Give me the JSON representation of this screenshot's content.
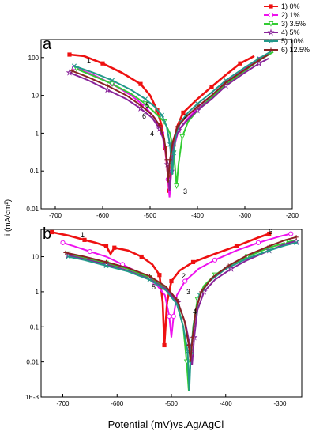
{
  "figure": {
    "ylabel": "i (mA/cm²)",
    "xlabel": "Potential (mV)vs.Ag/AgCl"
  },
  "legend": [
    {
      "label": "1) 0%",
      "color": "#ee1111",
      "marker": "square"
    },
    {
      "label": "2) 1%",
      "color": "#ee11ee",
      "marker": "circle"
    },
    {
      "label": "3) 3.5%",
      "color": "#33cc33",
      "marker": "triangle-down"
    },
    {
      "label": "4) 5%",
      "color": "#882299",
      "marker": "star"
    },
    {
      "label": "5) 10%",
      "color": "#22998a",
      "marker": "x"
    },
    {
      "label": "6) 12.5%",
      "color": "#882222",
      "marker": "plus"
    }
  ],
  "chart_data": [
    {
      "panel": "a",
      "type": "line",
      "xlabel": "",
      "ylabel": "i (mA/cm²)",
      "x_ticks": [
        -700,
        -600,
        -500,
        -400,
        -300,
        -200
      ],
      "y_ticks": [
        "0.01",
        "0.1",
        "1",
        "10",
        "100"
      ],
      "y_scale": "log",
      "xlim": [
        -730,
        -200
      ],
      "ylim": [
        0.01,
        300
      ],
      "curve_labels": [
        "1",
        "2",
        "3",
        "4",
        "5",
        "6"
      ],
      "series": [
        {
          "name": "1) 0%",
          "corrosion_potential": -460,
          "points": [
            [
              -670,
              120
            ],
            [
              -640,
              110
            ],
            [
              -600,
              70
            ],
            [
              -560,
              40
            ],
            [
              -520,
              20
            ],
            [
              -500,
              10
            ],
            [
              -485,
              4
            ],
            [
              -475,
              1.5
            ],
            [
              -468,
              0.4
            ],
            [
              -463,
              0.1
            ],
            [
              -460,
              0.03
            ],
            [
              -456,
              0.1
            ],
            [
              -450,
              0.5
            ],
            [
              -443,
              1.5
            ],
            [
              -430,
              3.5
            ],
            [
              -400,
              8
            ],
            [
              -370,
              17
            ],
            [
              -340,
              35
            ],
            [
              -310,
              70
            ],
            [
              -280,
              110
            ]
          ]
        },
        {
          "name": "2) 1%",
          "corrosion_potential": -460,
          "points": [
            [
              -660,
              55
            ],
            [
              -620,
              35
            ],
            [
              -580,
              20
            ],
            [
              -540,
              10
            ],
            [
              -510,
              5
            ],
            [
              -490,
              2.5
            ],
            [
              -475,
              1
            ],
            [
              -467,
              0.3
            ],
            [
              -462,
              0.06
            ],
            [
              -459,
              0.02
            ],
            [
              -455,
              0.1
            ],
            [
              -450,
              0.4
            ],
            [
              -440,
              1.2
            ],
            [
              -420,
              2.5
            ],
            [
              -400,
              4.5
            ],
            [
              -370,
              10
            ],
            [
              -340,
              22
            ],
            [
              -300,
              50
            ],
            [
              -270,
              90
            ],
            [
              -250,
              130
            ]
          ]
        },
        {
          "name": "3) 3.5%",
          "corrosion_potential": -445,
          "points": [
            [
              -655,
              50
            ],
            [
              -620,
              33
            ],
            [
              -580,
              20
            ],
            [
              -540,
              11
            ],
            [
              -510,
              6
            ],
            [
              -490,
              3.5
            ],
            [
              -470,
              2
            ],
            [
              -458,
              1
            ],
            [
              -450,
              0.3
            ],
            [
              -446,
              0.08
            ],
            [
              -444,
              0.04
            ],
            [
              -440,
              0.15
            ],
            [
              -432,
              0.8
            ],
            [
              -420,
              2
            ],
            [
              -400,
              4
            ],
            [
              -370,
              9
            ],
            [
              -340,
              20
            ],
            [
              -300,
              45
            ],
            [
              -270,
              85
            ],
            [
              -240,
              140
            ]
          ]
        },
        {
          "name": "4) 5%",
          "corrosion_potential": -458,
          "points": [
            [
              -670,
              40
            ],
            [
              -630,
              25
            ],
            [
              -590,
              14
            ],
            [
              -550,
              8
            ],
            [
              -520,
              4.5
            ],
            [
              -495,
              2.5
            ],
            [
              -480,
              1.3
            ],
            [
              -470,
              0.6
            ],
            [
              -463,
              0.15
            ],
            [
              -459,
              0.03
            ],
            [
              -455,
              0.1
            ],
            [
              -450,
              0.5
            ],
            [
              -440,
              1.2
            ],
            [
              -420,
              2.3
            ],
            [
              -400,
              4
            ],
            [
              -370,
              8
            ],
            [
              -340,
              18
            ],
            [
              -300,
              40
            ],
            [
              -270,
              70
            ],
            [
              -250,
              95
            ]
          ]
        },
        {
          "name": "5) 10%",
          "corrosion_potential": -452,
          "points": [
            [
              -660,
              60
            ],
            [
              -620,
              40
            ],
            [
              -580,
              25
            ],
            [
              -540,
              14
            ],
            [
              -510,
              8
            ],
            [
              -490,
              5
            ],
            [
              -475,
              3
            ],
            [
              -465,
              1.5
            ],
            [
              -458,
              0.5
            ],
            [
              -453,
              0.08
            ],
            [
              -450,
              0.3
            ],
            [
              -445,
              1
            ],
            [
              -435,
              2
            ],
            [
              -420,
              3.5
            ],
            [
              -400,
              6
            ],
            [
              -370,
              12
            ],
            [
              -340,
              25
            ],
            [
              -300,
              55
            ],
            [
              -270,
              95
            ],
            [
              -245,
              145
            ]
          ]
        },
        {
          "name": "6) 12.5%",
          "corrosion_potential": -462,
          "points": [
            [
              -665,
              45
            ],
            [
              -630,
              30
            ],
            [
              -590,
              18
            ],
            [
              -550,
              10
            ],
            [
              -520,
              5.5
            ],
            [
              -495,
              3
            ],
            [
              -480,
              1.6
            ],
            [
              -470,
              0.7
            ],
            [
              -465,
              0.2
            ],
            [
              -462,
              0.05
            ],
            [
              -458,
              0.2
            ],
            [
              -452,
              0.6
            ],
            [
              -442,
              1.5
            ],
            [
              -420,
              3
            ],
            [
              -400,
              5
            ],
            [
              -370,
              10
            ],
            [
              -340,
              22
            ],
            [
              -300,
              48
            ],
            [
              -270,
              85
            ],
            [
              -250,
              120
            ]
          ]
        }
      ]
    },
    {
      "panel": "b",
      "type": "line",
      "xlabel": "Potential (mV)vs.Ag/AgCl",
      "ylabel": "",
      "x_ticks": [
        -700,
        -600,
        -500,
        -400,
        -300
      ],
      "y_ticks": [
        "1E-3",
        "0.01",
        "0.1",
        "1",
        "10"
      ],
      "y_scale": "log",
      "xlim": [
        -740,
        -260
      ],
      "ylim": [
        0.001,
        60
      ],
      "curve_labels": [
        "1",
        "2",
        "3",
        "4",
        "5",
        "6"
      ],
      "series": [
        {
          "name": "1) 0%",
          "corrosion_potential": -515,
          "points": [
            [
              -720,
              50
            ],
            [
              -690,
              40
            ],
            [
              -660,
              30
            ],
            [
              -640,
              25
            ],
            [
              -620,
              20
            ],
            [
              -612,
              12
            ],
            [
              -605,
              18
            ],
            [
              -580,
              15
            ],
            [
              -555,
              10
            ],
            [
              -535,
              6
            ],
            [
              -522,
              3
            ],
            [
              -516,
              0.5
            ],
            [
              -513,
              0.03
            ],
            [
              -508,
              0.5
            ],
            [
              -500,
              2
            ],
            [
              -485,
              4
            ],
            [
              -460,
              7
            ],
            [
              -420,
              12
            ],
            [
              -380,
              20
            ],
            [
              -340,
              35
            ],
            [
              -320,
              45
            ]
          ]
        },
        {
          "name": "2) 1%",
          "corrosion_potential": -500,
          "points": [
            [
              -700,
              25
            ],
            [
              -680,
              20
            ],
            [
              -650,
              14
            ],
            [
              -620,
              10
            ],
            [
              -590,
              6
            ],
            [
              -560,
              3.5
            ],
            [
              -530,
              1.8
            ],
            [
              -512,
              0.8
            ],
            [
              -504,
              0.2
            ],
            [
              -500,
              0.05
            ],
            [
              -496,
              0.2
            ],
            [
              -490,
              0.8
            ],
            [
              -475,
              2
            ],
            [
              -450,
              4.5
            ],
            [
              -420,
              8
            ],
            [
              -380,
              15
            ],
            [
              -340,
              25
            ],
            [
              -300,
              38
            ],
            [
              -280,
              45
            ]
          ]
        },
        {
          "name": "3) 3.5%",
          "corrosion_potential": -470,
          "points": [
            [
              -690,
              12
            ],
            [
              -660,
              9
            ],
            [
              -620,
              6.5
            ],
            [
              -580,
              4.5
            ],
            [
              -540,
              2.5
            ],
            [
              -510,
              1.3
            ],
            [
              -490,
              0.5
            ],
            [
              -478,
              0.1
            ],
            [
              -472,
              0.01
            ],
            [
              -468,
              0.0015
            ],
            [
              -465,
              0.01
            ],
            [
              -460,
              0.1
            ],
            [
              -452,
              0.6
            ],
            [
              -440,
              1.5
            ],
            [
              -420,
              3
            ],
            [
              -390,
              6
            ],
            [
              -360,
              10
            ],
            [
              -320,
              18
            ],
            [
              -290,
              25
            ],
            [
              -270,
              30
            ]
          ]
        },
        {
          "name": "4) 5%",
          "corrosion_potential": -462,
          "points": [
            [
              -690,
              11
            ],
            [
              -660,
              8.5
            ],
            [
              -620,
              6
            ],
            [
              -580,
              4
            ],
            [
              -540,
              2.3
            ],
            [
              -510,
              1.2
            ],
            [
              -488,
              0.5
            ],
            [
              -474,
              0.12
            ],
            [
              -466,
              0.03
            ],
            [
              -462,
              0.008
            ],
            [
              -458,
              0.05
            ],
            [
              -452,
              0.3
            ],
            [
              -440,
              1
            ],
            [
              -420,
              2.2
            ],
            [
              -390,
              4.5
            ],
            [
              -360,
              8
            ],
            [
              -320,
              15
            ],
            [
              -290,
              23
            ],
            [
              -270,
              28
            ]
          ]
        },
        {
          "name": "5) 10%",
          "corrosion_potential": -468,
          "points": [
            [
              -690,
              10
            ],
            [
              -660,
              8
            ],
            [
              -620,
              5.5
            ],
            [
              -580,
              3.8
            ],
            [
              -540,
              2.2
            ],
            [
              -510,
              1.1
            ],
            [
              -490,
              0.45
            ],
            [
              -478,
              0.1
            ],
            [
              -470,
              0.02
            ],
            [
              -467,
              0.0015
            ],
            [
              -464,
              0.02
            ],
            [
              -458,
              0.15
            ],
            [
              -448,
              0.8
            ],
            [
              -430,
              2
            ],
            [
              -400,
              4.5
            ],
            [
              -360,
              9
            ],
            [
              -320,
              15
            ],
            [
              -290,
              21
            ],
            [
              -270,
              25
            ]
          ]
        },
        {
          "name": "6) 12.5%",
          "corrosion_potential": -465,
          "points": [
            [
              -695,
              13
            ],
            [
              -660,
              10
            ],
            [
              -620,
              7
            ],
            [
              -580,
              4.8
            ],
            [
              -540,
              2.8
            ],
            [
              -510,
              1.4
            ],
            [
              -490,
              0.6
            ],
            [
              -476,
              0.15
            ],
            [
              -468,
              0.03
            ],
            [
              -465,
              0.01
            ],
            [
              -461,
              0.05
            ],
            [
              -455,
              0.3
            ],
            [
              -445,
              1
            ],
            [
              -425,
              2.5
            ],
            [
              -395,
              5.5
            ],
            [
              -360,
              11
            ],
            [
              -320,
              20
            ],
            [
              -290,
              30
            ],
            [
              -270,
              36
            ]
          ]
        }
      ]
    }
  ]
}
